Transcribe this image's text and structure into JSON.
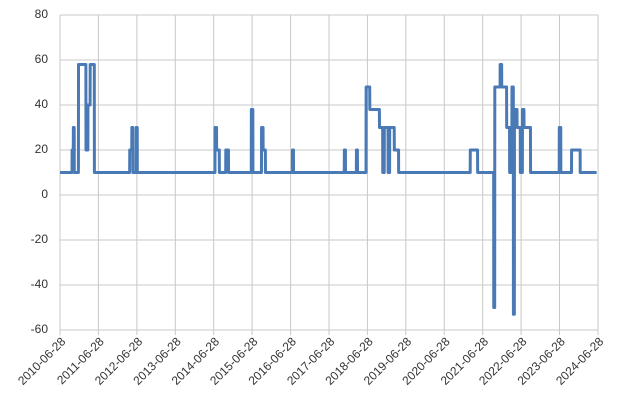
{
  "chart_data": {
    "type": "line",
    "x": [
      "2010-06-28",
      "2010-10-20",
      "2010-10-21",
      "2010-11-01",
      "2010-11-02",
      "2010-11-10",
      "2010-11-11",
      "2010-12-20",
      "2010-12-21",
      "2011-03-01",
      "2011-03-02",
      "2011-03-20",
      "2011-03-21",
      "2011-04-10",
      "2011-04-11",
      "2011-05-20",
      "2011-05-21",
      "2012-04-20",
      "2012-04-21",
      "2012-05-10",
      "2012-05-11",
      "2012-05-20",
      "2012-05-21",
      "2012-06-20",
      "2012-06-21",
      "2012-07-01",
      "2012-07-02",
      "2014-07-10",
      "2014-07-11",
      "2014-07-25",
      "2014-07-26",
      "2014-08-20",
      "2014-08-21",
      "2014-10-20",
      "2014-10-21",
      "2014-11-15",
      "2014-11-16",
      "2015-06-20",
      "2015-06-21",
      "2015-07-05",
      "2015-07-06",
      "2015-09-25",
      "2015-09-26",
      "2015-10-10",
      "2015-10-11",
      "2015-11-01",
      "2015-11-02",
      "2016-07-15",
      "2016-07-16",
      "2016-07-25",
      "2016-07-26",
      "2017-11-20",
      "2017-11-21",
      "2017-12-01",
      "2017-12-02",
      "2018-03-15",
      "2018-03-16",
      "2018-03-25",
      "2018-03-26",
      "2018-06-15",
      "2018-06-16",
      "2018-07-20",
      "2018-07-21",
      "2018-10-20",
      "2018-10-21",
      "2018-11-20",
      "2018-11-21",
      "2018-12-05",
      "2018-12-06",
      "2019-01-10",
      "2019-01-11",
      "2019-01-25",
      "2019-01-26",
      "2019-03-10",
      "2019-03-11",
      "2019-04-20",
      "2019-04-21",
      "2021-03-01",
      "2021-03-02",
      "2021-05-10",
      "2021-05-11",
      "2021-10-10",
      "2021-10-11",
      "2021-10-20",
      "2021-10-21",
      "2021-12-10",
      "2021-12-11",
      "2021-12-25",
      "2021-12-26",
      "2022-02-10",
      "2022-02-11",
      "2022-03-10",
      "2022-03-11",
      "2022-04-01",
      "2022-04-02",
      "2022-04-15",
      "2022-04-16",
      "2022-04-25",
      "2022-04-26",
      "2022-05-20",
      "2022-05-21",
      "2022-06-20",
      "2022-06-21",
      "2022-07-10",
      "2022-07-11",
      "2022-07-25",
      "2022-07-26",
      "2022-09-25",
      "2022-09-26",
      "2023-06-25",
      "2023-06-26",
      "2023-07-10",
      "2023-07-11",
      "2023-10-20",
      "2023-10-21",
      "2024-01-10",
      "2024-01-11",
      "2024-06-15"
    ],
    "series": [
      {
        "color": "#4a7ab5",
        "values": [
          10,
          10,
          20,
          20,
          30,
          30,
          10,
          10,
          58,
          58,
          20,
          20,
          40,
          40,
          58,
          58,
          10,
          10,
          20,
          20,
          30,
          30,
          10,
          10,
          30,
          30,
          10,
          10,
          30,
          30,
          20,
          20,
          10,
          10,
          20,
          20,
          10,
          10,
          38,
          38,
          10,
          10,
          30,
          30,
          20,
          20,
          10,
          10,
          20,
          20,
          10,
          10,
          20,
          20,
          10,
          10,
          20,
          20,
          10,
          10,
          48,
          48,
          38,
          38,
          30,
          30,
          10,
          10,
          30,
          30,
          10,
          10,
          30,
          30,
          20,
          20,
          10,
          10,
          20,
          20,
          10,
          10,
          -50,
          -50,
          48,
          48,
          58,
          58,
          48,
          48,
          30,
          30,
          10,
          10,
          48,
          48,
          -53,
          -53,
          38,
          38,
          30,
          30,
          10,
          10,
          38,
          38,
          30,
          30,
          10,
          10,
          30,
          30,
          10,
          10,
          20,
          20,
          10,
          10
        ]
      }
    ],
    "xlim": [
      "2010-06-28",
      "2024-06-28"
    ],
    "xticks": [
      "2010-06-28",
      "2011-06-28",
      "2012-06-28",
      "2013-06-28",
      "2014-06-28",
      "2015-06-28",
      "2016-06-28",
      "2017-06-28",
      "2018-06-28",
      "2019-06-28",
      "2020-06-28",
      "2021-06-28",
      "2022-06-28",
      "2023-06-28",
      "2024-06-28"
    ],
    "ylim": [
      -60,
      80
    ],
    "yticks": [
      -60,
      -40,
      -20,
      0,
      20,
      40,
      60,
      80
    ],
    "grid": true
  }
}
